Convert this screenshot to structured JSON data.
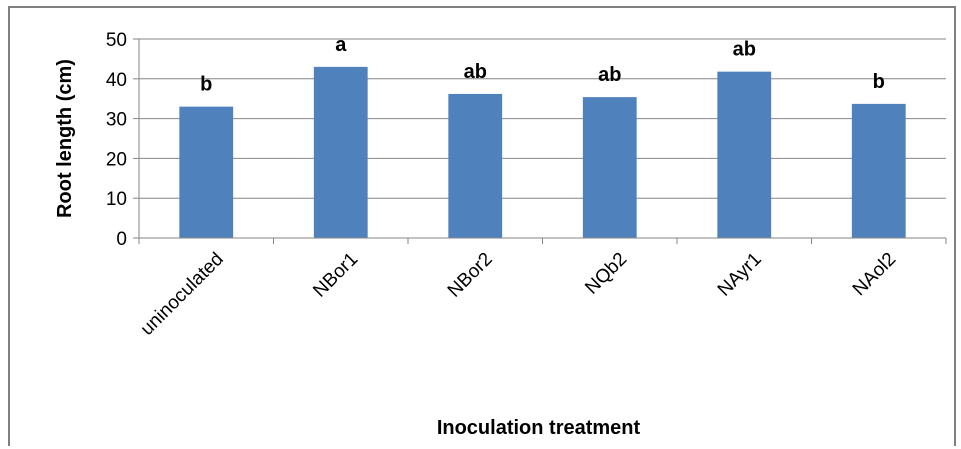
{
  "chart_data": {
    "type": "bar",
    "categories": [
      "uninoculated",
      "NBor1",
      "NBor2",
      "NQb2",
      "NAyr1",
      "NAol2"
    ],
    "values": [
      33,
      43,
      36.2,
      35.4,
      41.8,
      33.7
    ],
    "significance_labels": [
      "b",
      "a",
      "ab",
      "ab",
      "ab",
      "b"
    ],
    "xlabel": "Inoculation treatment",
    "ylabel": "Root length (cm)",
    "ylim": [
      0,
      50
    ],
    "yticks": [
      0,
      10,
      20,
      30,
      40,
      50
    ],
    "grid": true,
    "bar_color": "#4f81bd",
    "grid_color": "#868686"
  }
}
